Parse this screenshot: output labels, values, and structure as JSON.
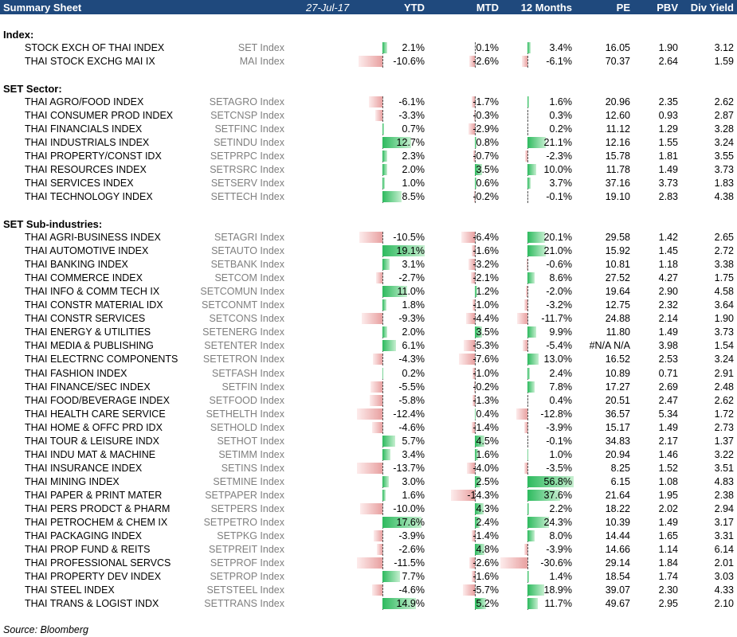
{
  "header": {
    "title": "Summary Sheet",
    "date": "27-Jul-17",
    "cols": {
      "ytd": "YTD",
      "mtd": "MTD",
      "m12": "12 Months",
      "pe": "PE",
      "pbv": "PBV",
      "dy": "Div Yield"
    }
  },
  "colors": {
    "header_bg": "#1f497d",
    "positive": "#2dba5e",
    "negative": "#e8a0a0",
    "ticker": "#7f7f7f"
  },
  "sections": [
    {
      "title": "Index:",
      "rows": [
        {
          "name": "STOCK EXCH OF THAI INDEX",
          "ticker": "SET Index",
          "ytd": 2.1,
          "mtd": 0.1,
          "m12": 3.4,
          "ytd_t": "2.1%",
          "mtd_t": "0.1%",
          "m12_t": "3.4%",
          "pe": "16.05",
          "pbv": "1.90",
          "dy": "3.12"
        },
        {
          "name": "THAI STOCK EXCHG MAI IX",
          "ticker": "MAI Index",
          "ytd": -10.6,
          "mtd": -2.6,
          "m12": -6.1,
          "ytd_t": "-10.6%",
          "mtd_t": "-2.6%",
          "m12_t": "-6.1%",
          "pe": "70.37",
          "pbv": "2.64",
          "dy": "1.59"
        }
      ]
    },
    {
      "title": "SET Sector:",
      "rows": [
        {
          "name": "THAI AGRO/FOOD INDEX",
          "ticker": "SETAGRO Index",
          "ytd": -6.1,
          "mtd": -1.7,
          "m12": 1.6,
          "ytd_t": "-6.1%",
          "mtd_t": "-1.7%",
          "m12_t": "1.6%",
          "pe": "20.96",
          "pbv": "2.35",
          "dy": "2.62"
        },
        {
          "name": "THAI CONSUMER PROD INDEX",
          "ticker": "SETCNSP Index",
          "ytd": -3.3,
          "mtd": -0.3,
          "m12": 0.3,
          "ytd_t": "-3.3%",
          "mtd_t": "-0.3%",
          "m12_t": "0.3%",
          "pe": "12.60",
          "pbv": "0.93",
          "dy": "2.87"
        },
        {
          "name": "THAI FINANCIALS INDEX",
          "ticker": "SETFINC Index",
          "ytd": 0.7,
          "mtd": -2.9,
          "m12": 0.2,
          "ytd_t": "0.7%",
          "mtd_t": "-2.9%",
          "m12_t": "0.2%",
          "pe": "11.12",
          "pbv": "1.29",
          "dy": "3.28"
        },
        {
          "name": "THAI INDUSTRIALS INDEX",
          "ticker": "SETINDU Index",
          "ytd": 12.7,
          "mtd": 0.8,
          "m12": 21.1,
          "ytd_t": "12.7%",
          "mtd_t": "0.8%",
          "m12_t": "21.1%",
          "pe": "12.16",
          "pbv": "1.55",
          "dy": "3.24"
        },
        {
          "name": "THAI PROPERTY/CONST IDX",
          "ticker": "SETPRPC Index",
          "ytd": 2.3,
          "mtd": -0.7,
          "m12": -2.3,
          "ytd_t": "2.3%",
          "mtd_t": "-0.7%",
          "m12_t": "-2.3%",
          "pe": "15.78",
          "pbv": "1.81",
          "dy": "3.55"
        },
        {
          "name": "THAI RESOURCES INDEX",
          "ticker": "SETRSRC Index",
          "ytd": 2.0,
          "mtd": 3.5,
          "m12": 10.0,
          "ytd_t": "2.0%",
          "mtd_t": "3.5%",
          "m12_t": "10.0%",
          "pe": "11.78",
          "pbv": "1.49",
          "dy": "3.73"
        },
        {
          "name": "THAI SERVICES INDEX",
          "ticker": "SETSERV Index",
          "ytd": 1.0,
          "mtd": 0.6,
          "m12": 3.7,
          "ytd_t": "1.0%",
          "mtd_t": "0.6%",
          "m12_t": "3.7%",
          "pe": "37.16",
          "pbv": "3.73",
          "dy": "1.83"
        },
        {
          "name": "THAI TECHNOLOGY INDEX",
          "ticker": "SETTECH Index",
          "ytd": 8.5,
          "mtd": -0.2,
          "m12": -0.1,
          "ytd_t": "8.5%",
          "mtd_t": "-0.2%",
          "m12_t": "-0.1%",
          "pe": "19.10",
          "pbv": "2.83",
          "dy": "4.38"
        }
      ]
    },
    {
      "title": "SET Sub-industries:",
      "rows": [
        {
          "name": "THAI AGRI-BUSINESS INDEX",
          "ticker": "SETAGRI Index",
          "ytd": -10.5,
          "mtd": -6.4,
          "m12": 20.1,
          "ytd_t": "-10.5%",
          "mtd_t": "-6.4%",
          "m12_t": "20.1%",
          "pe": "29.58",
          "pbv": "1.42",
          "dy": "2.65"
        },
        {
          "name": "THAI AUTOMOTIVE INDEX",
          "ticker": "SETAUTO Index",
          "ytd": 19.1,
          "mtd": -1.6,
          "m12": 21.0,
          "ytd_t": "19.1%",
          "mtd_t": "-1.6%",
          "m12_t": "21.0%",
          "pe": "15.92",
          "pbv": "1.45",
          "dy": "2.72"
        },
        {
          "name": "THAI BANKING INDEX",
          "ticker": "SETBANK Index",
          "ytd": 3.1,
          "mtd": -3.2,
          "m12": -0.6,
          "ytd_t": "3.1%",
          "mtd_t": "-3.2%",
          "m12_t": "-0.6%",
          "pe": "10.81",
          "pbv": "1.18",
          "dy": "3.38"
        },
        {
          "name": "THAI COMMERCE INDEX",
          "ticker": "SETCOM Index",
          "ytd": -2.7,
          "mtd": -2.1,
          "m12": 8.6,
          "ytd_t": "-2.7%",
          "mtd_t": "-2.1%",
          "m12_t": "8.6%",
          "pe": "27.52",
          "pbv": "4.27",
          "dy": "1.75"
        },
        {
          "name": "THAI INFO & COMM TECH IX",
          "ticker": "SETCOMUN Index",
          "ytd": 11.0,
          "mtd": 1.2,
          "m12": -2.0,
          "ytd_t": "11.0%",
          "mtd_t": "1.2%",
          "m12_t": "-2.0%",
          "pe": "19.64",
          "pbv": "2.90",
          "dy": "4.58"
        },
        {
          "name": "THAI CONSTR MATERIAL IDX",
          "ticker": "SETCONMT Index",
          "ytd": 1.8,
          "mtd": -1.0,
          "m12": -3.2,
          "ytd_t": "1.8%",
          "mtd_t": "-1.0%",
          "m12_t": "-3.2%",
          "pe": "12.75",
          "pbv": "2.32",
          "dy": "3.64"
        },
        {
          "name": "THAI CONSTR SERVICES",
          "ticker": "SETCONS Index",
          "ytd": -9.3,
          "mtd": -4.4,
          "m12": -11.7,
          "ytd_t": "-9.3%",
          "mtd_t": "-4.4%",
          "m12_t": "-11.7%",
          "pe": "24.88",
          "pbv": "2.14",
          "dy": "1.90"
        },
        {
          "name": "THAI ENERGY & UTILITIES",
          "ticker": "SETENERG Index",
          "ytd": 2.0,
          "mtd": 3.5,
          "m12": 9.9,
          "ytd_t": "2.0%",
          "mtd_t": "3.5%",
          "m12_t": "9.9%",
          "pe": "11.80",
          "pbv": "1.49",
          "dy": "3.73"
        },
        {
          "name": "THAI MEDIA & PUBLISHING",
          "ticker": "SETENTER Index",
          "ytd": 6.1,
          "mtd": -5.3,
          "m12": -5.4,
          "ytd_t": "6.1%",
          "mtd_t": "-5.3%",
          "m12_t": "-5.4%",
          "pe": "#N/A N/A",
          "pbv": "3.98",
          "dy": "1.54"
        },
        {
          "name": "THAI ELECTRNC COMPONENTS",
          "ticker": "SETETRON Index",
          "ytd": -4.3,
          "mtd": -7.6,
          "m12": 13.0,
          "ytd_t": "-4.3%",
          "mtd_t": "-7.6%",
          "m12_t": "13.0%",
          "pe": "16.52",
          "pbv": "2.53",
          "dy": "3.24"
        },
        {
          "name": "THAI FASHION INDEX",
          "ticker": "SETFASH Index",
          "ytd": 0.2,
          "mtd": -1.0,
          "m12": 2.4,
          "ytd_t": "0.2%",
          "mtd_t": "-1.0%",
          "m12_t": "2.4%",
          "pe": "10.89",
          "pbv": "0.71",
          "dy": "2.91"
        },
        {
          "name": "THAI FINANCE/SEC INDEX",
          "ticker": "SETFIN Index",
          "ytd": -5.5,
          "mtd": -0.2,
          "m12": 7.8,
          "ytd_t": "-5.5%",
          "mtd_t": "-0.2%",
          "m12_t": "7.8%",
          "pe": "17.27",
          "pbv": "2.69",
          "dy": "2.48"
        },
        {
          "name": "THAI FOOD/BEVERAGE INDEX",
          "ticker": "SETFOOD Index",
          "ytd": -5.8,
          "mtd": -1.3,
          "m12": 0.4,
          "ytd_t": "-5.8%",
          "mtd_t": "-1.3%",
          "m12_t": "0.4%",
          "pe": "20.51",
          "pbv": "2.47",
          "dy": "2.62"
        },
        {
          "name": "THAI HEALTH CARE SERVICE",
          "ticker": "SETHELTH Index",
          "ytd": -12.4,
          "mtd": 0.4,
          "m12": -12.8,
          "ytd_t": "-12.4%",
          "mtd_t": "0.4%",
          "m12_t": "-12.8%",
          "pe": "36.57",
          "pbv": "5.34",
          "dy": "1.72"
        },
        {
          "name": "THAI HOME & OFFC PRD IDX",
          "ticker": "SETHOLD Index",
          "ytd": -4.6,
          "mtd": -1.4,
          "m12": -3.9,
          "ytd_t": "-4.6%",
          "mtd_t": "-1.4%",
          "m12_t": "-3.9%",
          "pe": "15.17",
          "pbv": "1.49",
          "dy": "2.73"
        },
        {
          "name": "THAI TOUR & LEISURE INDX",
          "ticker": "SETHOT Index",
          "ytd": 5.7,
          "mtd": 4.5,
          "m12": -0.1,
          "ytd_t": "5.7%",
          "mtd_t": "4.5%",
          "m12_t": "-0.1%",
          "pe": "34.83",
          "pbv": "2.17",
          "dy": "1.37"
        },
        {
          "name": "THAI INDU MAT & MACHINE",
          "ticker": "SETIMM Index",
          "ytd": 3.4,
          "mtd": 1.6,
          "m12": 1.0,
          "ytd_t": "3.4%",
          "mtd_t": "1.6%",
          "m12_t": "1.0%",
          "pe": "20.94",
          "pbv": "1.46",
          "dy": "3.22"
        },
        {
          "name": "THAI INSURANCE INDEX",
          "ticker": "SETINS Index",
          "ytd": -13.7,
          "mtd": -4.0,
          "m12": -3.5,
          "ytd_t": "-13.7%",
          "mtd_t": "-4.0%",
          "m12_t": "-3.5%",
          "pe": "8.25",
          "pbv": "1.52",
          "dy": "3.51"
        },
        {
          "name": "THAI MINING INDEX",
          "ticker": "SETMINE Index",
          "ytd": 3.0,
          "mtd": 2.5,
          "m12": 56.8,
          "ytd_t": "3.0%",
          "mtd_t": "2.5%",
          "m12_t": "56.8%",
          "pe": "6.15",
          "pbv": "1.08",
          "dy": "4.83"
        },
        {
          "name": "THAI PAPER & PRINT MATER",
          "ticker": "SETPAPER Index",
          "ytd": 1.6,
          "mtd": -14.3,
          "m12": 37.6,
          "ytd_t": "1.6%",
          "mtd_t": "-14.3%",
          "m12_t": "37.6%",
          "pe": "21.64",
          "pbv": "1.95",
          "dy": "2.38"
        },
        {
          "name": "THAI PERS PRODCT & PHARM",
          "ticker": "SETPERS Index",
          "ytd": -10.0,
          "mtd": 4.3,
          "m12": 2.2,
          "ytd_t": "-10.0%",
          "mtd_t": "4.3%",
          "m12_t": "2.2%",
          "pe": "18.22",
          "pbv": "2.02",
          "dy": "2.94"
        },
        {
          "name": "THAI PETROCHEM & CHEM IX",
          "ticker": "SETPETRO Index",
          "ytd": 17.6,
          "mtd": 2.4,
          "m12": 24.3,
          "ytd_t": "17.6%",
          "mtd_t": "2.4%",
          "m12_t": "24.3%",
          "pe": "10.39",
          "pbv": "1.49",
          "dy": "3.17"
        },
        {
          "name": "THAI PACKAGING INDEX",
          "ticker": "SETPKG Index",
          "ytd": -3.9,
          "mtd": -1.4,
          "m12": 8.0,
          "ytd_t": "-3.9%",
          "mtd_t": "-1.4%",
          "m12_t": "8.0%",
          "pe": "14.44",
          "pbv": "1.65",
          "dy": "3.31"
        },
        {
          "name": "THAI PROP FUND & REITS",
          "ticker": "SETPREIT Index",
          "ytd": -2.6,
          "mtd": 4.8,
          "m12": -3.9,
          "ytd_t": "-2.6%",
          "mtd_t": "4.8%",
          "m12_t": "-3.9%",
          "pe": "14.66",
          "pbv": "1.14",
          "dy": "6.14"
        },
        {
          "name": "THAI PROFESSIONAL SERVCS",
          "ticker": "SETPROF Index",
          "ytd": -11.5,
          "mtd": -2.6,
          "m12": -30.6,
          "ytd_t": "-11.5%",
          "mtd_t": "-2.6%",
          "m12_t": "-30.6%",
          "pe": "29.14",
          "pbv": "1.84",
          "dy": "2.01"
        },
        {
          "name": "THAI PROPERTY DEV INDEX",
          "ticker": "SETPROP Index",
          "ytd": 7.7,
          "mtd": -1.6,
          "m12": 1.4,
          "ytd_t": "7.7%",
          "mtd_t": "-1.6%",
          "m12_t": "1.4%",
          "pe": "18.54",
          "pbv": "1.74",
          "dy": "3.03"
        },
        {
          "name": "THAI STEEL INDEX",
          "ticker": "SETSTEEL Index",
          "ytd": -4.6,
          "mtd": -5.7,
          "m12": 18.9,
          "ytd_t": "-4.6%",
          "mtd_t": "-5.7%",
          "m12_t": "18.9%",
          "pe": "39.07",
          "pbv": "2.30",
          "dy": "4.33"
        },
        {
          "name": "THAI TRANS & LOGIST INDX",
          "ticker": "SETTRANS Index",
          "ytd": 14.9,
          "mtd": 5.2,
          "m12": 11.7,
          "ytd_t": "14.9%",
          "mtd_t": "5.2%",
          "m12_t": "11.7%",
          "pe": "49.67",
          "pbv": "2.95",
          "dy": "2.10"
        }
      ]
    }
  ],
  "source": "Source: Bloomberg"
}
